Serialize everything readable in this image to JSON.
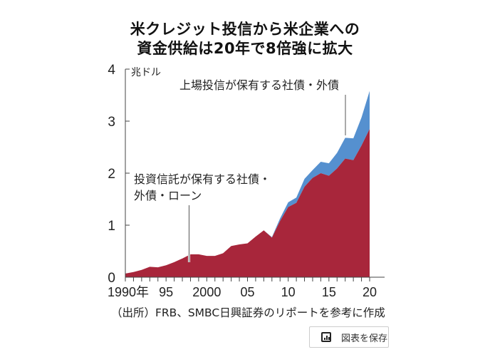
{
  "chart_data": {
    "type": "area",
    "stacked": true,
    "title": "米クレジット投信から米企業への",
    "title_line2": "資金供給は20年で8倍強に拡大",
    "ylabel": "兆ドル",
    "ylim": [
      0,
      4
    ],
    "yticks": [
      "0",
      "1",
      "2",
      "3",
      "4"
    ],
    "xlim": [
      1990,
      2020
    ],
    "xtick_labels": [
      {
        "year": 1990,
        "label": "1990年"
      },
      {
        "year": 1995,
        "label": "95"
      },
      {
        "year": 2000,
        "label": "2000"
      },
      {
        "year": 2005,
        "label": "05"
      },
      {
        "year": 2010,
        "label": "10"
      },
      {
        "year": 2015,
        "label": "15"
      },
      {
        "year": 2020,
        "label": "20"
      }
    ],
    "x": [
      1990,
      1991,
      1992,
      1993,
      1994,
      1995,
      1996,
      1997,
      1998,
      1999,
      2000,
      2001,
      2002,
      2003,
      2004,
      2005,
      2006,
      2007,
      2008,
      2009,
      2010,
      2011,
      2012,
      2013,
      2014,
      2015,
      2016,
      2017,
      2018,
      2019,
      2020
    ],
    "series": [
      {
        "name": "投資信託が保有する社債・外債・ローン",
        "color": "#a8263b",
        "values": [
          0.07,
          0.1,
          0.14,
          0.2,
          0.19,
          0.23,
          0.29,
          0.36,
          0.44,
          0.44,
          0.41,
          0.41,
          0.46,
          0.6,
          0.63,
          0.65,
          0.78,
          0.9,
          0.76,
          1.08,
          1.35,
          1.43,
          1.74,
          1.91,
          2.0,
          1.95,
          2.09,
          2.28,
          2.25,
          2.53,
          2.85
        ]
      },
      {
        "name": "上場投信が保有する社債・外債",
        "color": "#5590cf",
        "values": [
          0,
          0,
          0,
          0,
          0,
          0,
          0,
          0,
          0,
          0,
          0,
          0,
          0,
          0,
          0,
          0,
          0,
          0,
          0.01,
          0.05,
          0.09,
          0.1,
          0.15,
          0.15,
          0.22,
          0.24,
          0.3,
          0.4,
          0.42,
          0.54,
          0.73
        ]
      }
    ],
    "annotations": [
      {
        "series": 0,
        "text_line1": "投資信託が保有する社債・",
        "text_line2": "外債・ローン",
        "year": 1998
      },
      {
        "series": 1,
        "text": "上場投信が保有する社債・外債",
        "year": 2017
      }
    ]
  },
  "source": "（出所）FRB、SMBC日興証券のリポートを参考に作成",
  "save_button": {
    "label": "図表を保存",
    "icon": "bar-chart-icon"
  }
}
